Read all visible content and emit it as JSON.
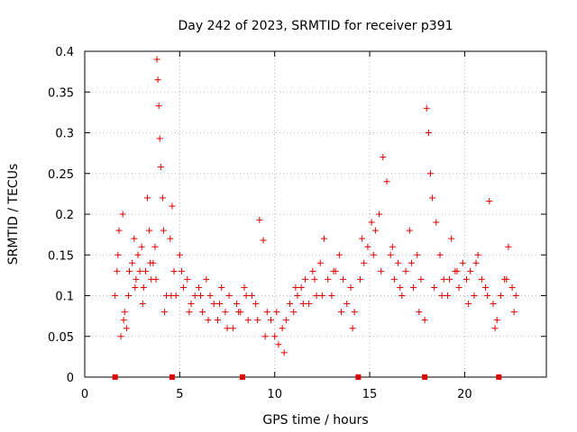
{
  "chart_data": {
    "type": "scatter",
    "title": "Day 242 of 2023, SRMTID for receiver p391",
    "xlabel": "GPS time / hours",
    "ylabel": "SRMTID / TECUs",
    "xlim": [
      0,
      24.3
    ],
    "ylim": [
      0,
      0.4
    ],
    "x_ticks": [
      0,
      5,
      10,
      15,
      20
    ],
    "x_tick_labels": [
      "0",
      "5",
      "10",
      "15",
      "20"
    ],
    "y_ticks": [
      0,
      0.05,
      0.1,
      0.15,
      0.2,
      0.25,
      0.3,
      0.35,
      0.4
    ],
    "y_tick_labels": [
      "0",
      "0.05",
      "0.1",
      "0.15",
      "0.2",
      "0.25",
      "0.3",
      "0.35",
      "0.4"
    ],
    "grid": true,
    "marker": "+",
    "color": "#dd0000",
    "series": [
      {
        "name": "SRMTID",
        "x": [
          1.6,
          1.7,
          1.8,
          1.9,
          2.0,
          2.1,
          2.2,
          2.3,
          2.5,
          2.6,
          2.7,
          2.8,
          2.9,
          3.0,
          3.1,
          3.2,
          3.3,
          3.4,
          3.5,
          3.6,
          3.7,
          3.8,
          3.85,
          3.9,
          3.95,
          4.0,
          4.1,
          4.2,
          4.3,
          4.5,
          4.6,
          4.7,
          4.8,
          5.0,
          5.2,
          5.4,
          5.6,
          5.8,
          6.0,
          6.2,
          6.4,
          6.6,
          6.8,
          7.0,
          7.2,
          7.4,
          7.6,
          7.8,
          8.0,
          8.2,
          8.4,
          8.6,
          8.8,
          9.0,
          9.2,
          9.4,
          9.6,
          9.8,
          10.0,
          10.2,
          10.4,
          10.6,
          10.8,
          11.0,
          11.2,
          11.4,
          11.6,
          11.8,
          12.0,
          12.2,
          12.4,
          12.6,
          12.8,
          13.0,
          13.2,
          13.4,
          13.6,
          13.8,
          14.0,
          14.2,
          14.5,
          14.7,
          14.9,
          15.1,
          15.3,
          15.5,
          15.7,
          15.9,
          16.1,
          16.3,
          16.5,
          16.7,
          16.9,
          17.1,
          17.3,
          17.5,
          17.7,
          17.9,
          18.0,
          18.1,
          18.2,
          18.3,
          18.5,
          18.7,
          18.9,
          19.1,
          19.3,
          19.5,
          19.7,
          19.9,
          20.1,
          20.3,
          20.5,
          20.7,
          20.9,
          21.1,
          21.3,
          21.5,
          21.7,
          21.9,
          22.1,
          22.3,
          22.5,
          22.7,
          1.75,
          2.05,
          2.35,
          2.65,
          3.05,
          3.45,
          3.75,
          4.15,
          4.55,
          5.1,
          5.5,
          6.1,
          6.5,
          7.1,
          7.5,
          8.1,
          8.5,
          9.1,
          9.5,
          10.1,
          10.5,
          11.1,
          11.5,
          12.1,
          12.5,
          13.1,
          13.5,
          14.1,
          14.6,
          15.2,
          15.6,
          16.2,
          16.6,
          17.2,
          17.6,
          18.4,
          18.8,
          19.2,
          19.6,
          20.2,
          20.6,
          21.2,
          21.6,
          22.2,
          22.6
        ],
        "y": [
          0.1,
          0.13,
          0.18,
          0.05,
          0.2,
          0.08,
          0.06,
          0.1,
          0.14,
          0.17,
          0.12,
          0.15,
          0.13,
          0.16,
          0.11,
          0.13,
          0.22,
          0.18,
          0.12,
          0.14,
          0.16,
          0.39,
          0.365,
          0.333,
          0.293,
          0.258,
          0.22,
          0.08,
          0.1,
          0.17,
          0.21,
          0.13,
          0.1,
          0.15,
          0.11,
          0.12,
          0.09,
          0.1,
          0.11,
          0.08,
          0.12,
          0.1,
          0.09,
          0.07,
          0.11,
          0.08,
          0.1,
          0.06,
          0.09,
          0.08,
          0.11,
          0.07,
          0.1,
          0.09,
          0.193,
          0.168,
          0.08,
          0.07,
          0.05,
          0.04,
          0.06,
          0.07,
          0.09,
          0.08,
          0.1,
          0.11,
          0.12,
          0.09,
          0.13,
          0.1,
          0.14,
          0.17,
          0.12,
          0.1,
          0.13,
          0.15,
          0.12,
          0.09,
          0.11,
          0.08,
          0.12,
          0.14,
          0.16,
          0.19,
          0.18,
          0.2,
          0.27,
          0.24,
          0.15,
          0.12,
          0.14,
          0.1,
          0.13,
          0.18,
          0.11,
          0.15,
          0.12,
          0.07,
          0.33,
          0.3,
          0.25,
          0.22,
          0.19,
          0.15,
          0.12,
          0.1,
          0.17,
          0.13,
          0.11,
          0.14,
          0.12,
          0.13,
          0.1,
          0.15,
          0.12,
          0.11,
          0.216,
          0.09,
          0.07,
          0.1,
          0.12,
          0.16,
          0.11,
          0.1,
          0.15,
          0.07,
          0.13,
          0.11,
          0.09,
          0.14,
          0.12,
          0.18,
          0.1,
          0.13,
          0.08,
          0.1,
          0.07,
          0.09,
          0.06,
          0.08,
          0.1,
          0.07,
          0.05,
          0.08,
          0.03,
          0.11,
          0.09,
          0.12,
          0.1,
          0.13,
          0.08,
          0.06,
          0.17,
          0.15,
          0.13,
          0.16,
          0.11,
          0.14,
          0.08,
          0.11,
          0.1,
          0.12,
          0.13,
          0.09,
          0.14,
          0.1,
          0.06,
          0.12,
          0.08
        ]
      }
    ],
    "gap_markers_x": [
      1.6,
      4.6,
      8.3,
      14.4,
      17.9,
      21.8
    ]
  }
}
